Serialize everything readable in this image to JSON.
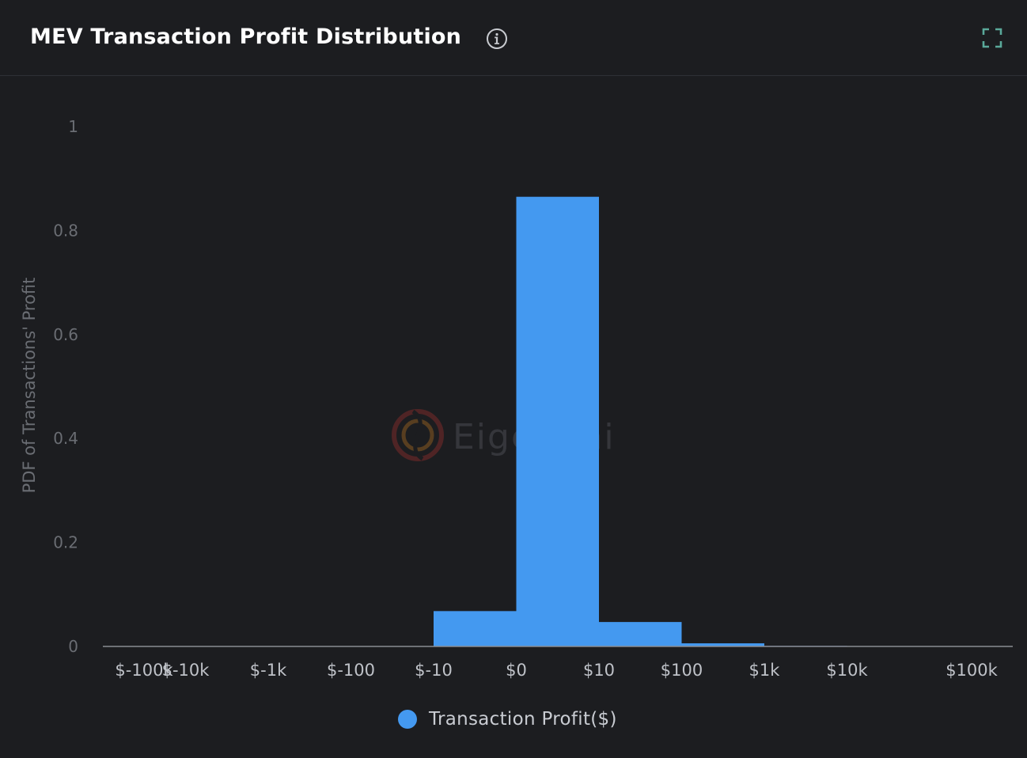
{
  "header": {
    "title": "MEV Transaction Profit Distribution",
    "info_icon": "info-circle-icon",
    "expand_icon": "fullscreen-expand-icon"
  },
  "watermark": {
    "text": "EigenPhi",
    "logo_icon": "eigenphi-logo-icon"
  },
  "colors": {
    "background": "#1c1d20",
    "bar": "#4499f0",
    "axis": "#8a8d93",
    "tick_text": "#bfc2c8",
    "y_tick_text": "#6a6d73",
    "expand_icon": "#5aa99a"
  },
  "chart_data": {
    "type": "bar",
    "ylabel": "PDF of Transactions' Profit",
    "xlabel": "",
    "ylim": [
      0,
      1
    ],
    "yticks": [
      "0",
      "0.2",
      "0.4",
      "0.6",
      "0.8",
      "1"
    ],
    "xticks": [
      "$-100k",
      "$-10k",
      "$-1k",
      "$-100",
      "$-10",
      "$0",
      "$10",
      "$100",
      "$1k",
      "$10k",
      "$100k"
    ],
    "bins": [
      {
        "from": "$-100k",
        "to": "$-10k",
        "value": 0
      },
      {
        "from": "$-10k",
        "to": "$-1k",
        "value": 0
      },
      {
        "from": "$-1k",
        "to": "$-100",
        "value": 0
      },
      {
        "from": "$-100",
        "to": "$-10",
        "value": 0
      },
      {
        "from": "$-10",
        "to": "$0",
        "value": 0.068
      },
      {
        "from": "$0",
        "to": "$10",
        "value": 0.865
      },
      {
        "from": "$10",
        "to": "$100",
        "value": 0.047
      },
      {
        "from": "$100",
        "to": "$1k",
        "value": 0.006
      },
      {
        "from": "$1k",
        "to": "$10k",
        "value": 0.001
      },
      {
        "from": "$10k",
        "to": "$100k",
        "value": 0
      }
    ],
    "series": [
      {
        "name": "Transaction Profit($)"
      }
    ],
    "legend_position": "bottom-center",
    "grid": false
  }
}
